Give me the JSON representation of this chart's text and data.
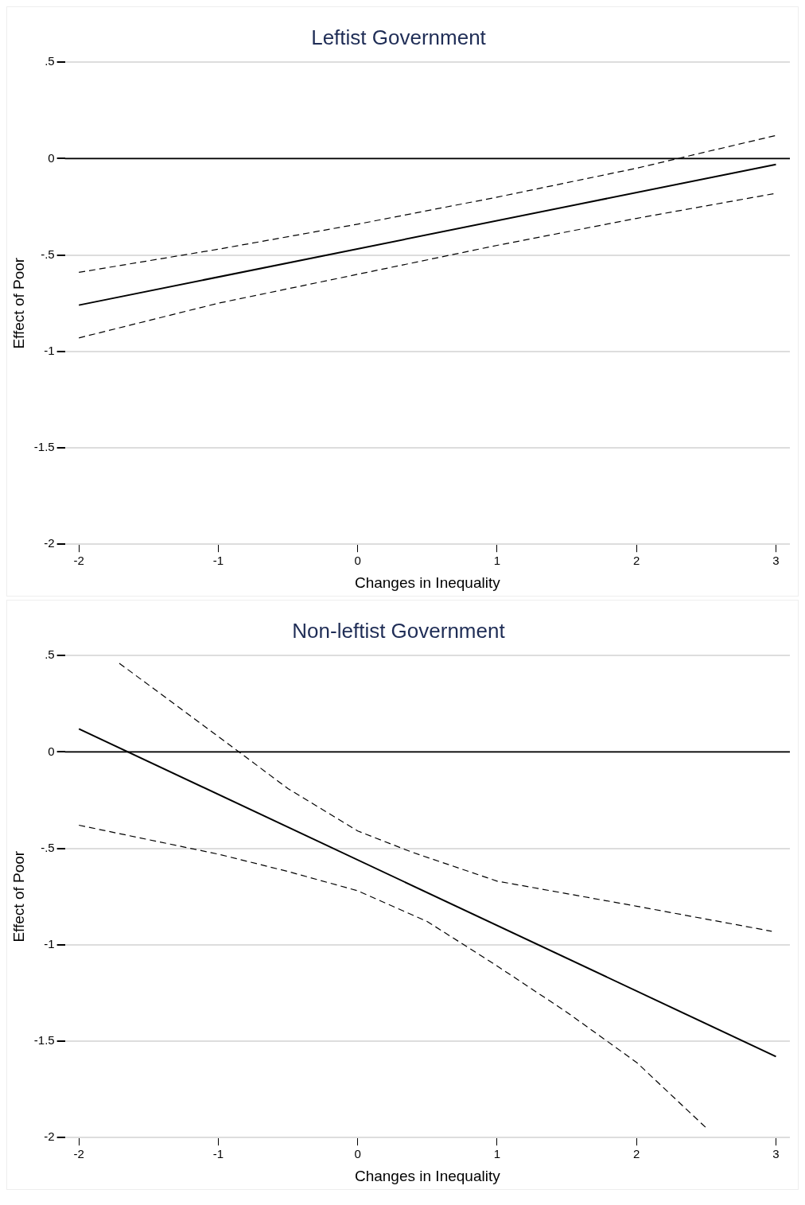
{
  "chart_data": [
    {
      "type": "line",
      "title": "Leftist Government",
      "xlabel": "Changes in Inequality",
      "ylabel": "Effect of Poor",
      "xlim": [
        -2.1,
        3.1
      ],
      "xticks": [
        -2,
        -1,
        0,
        1,
        2,
        3
      ],
      "ylim": [
        -2,
        0.5
      ],
      "yticks": [
        {
          "value": -2,
          "label": "-2"
        },
        {
          "value": -1.5,
          "label": "-1.5"
        },
        {
          "value": -1,
          "label": "-1"
        },
        {
          "value": -0.5,
          "label": "-.5"
        },
        {
          "value": 0,
          "label": "0"
        },
        {
          "value": 0.5,
          "label": ".5"
        }
      ],
      "grid": "y",
      "legend": false,
      "marker": "none",
      "ref_lines": [
        {
          "axis": "y",
          "value": 0,
          "color": "#000000",
          "line_style": "solid"
        }
      ],
      "series": [
        {
          "color": "#000000",
          "line_style": "dashed",
          "x": [
            -2,
            -1,
            0,
            1,
            2,
            3
          ],
          "values": [
            -0.59,
            -0.47,
            -0.34,
            -0.2,
            -0.05,
            0.12
          ]
        },
        {
          "color": "#000000",
          "line_style": "solid",
          "x": [
            -2,
            3
          ],
          "values": [
            -0.76,
            -0.03
          ]
        },
        {
          "color": "#000000",
          "line_style": "dashed",
          "x": [
            -2,
            -1,
            0,
            1,
            2,
            3
          ],
          "values": [
            -0.93,
            -0.75,
            -0.6,
            -0.45,
            -0.31,
            -0.18
          ]
        }
      ]
    },
    {
      "type": "line",
      "title": "Non-leftist Government",
      "xlabel": "Changes in Inequality",
      "ylabel": "Effect of Poor",
      "xlim": [
        -2.1,
        3.1
      ],
      "xticks": [
        -2,
        -1,
        0,
        1,
        2,
        3
      ],
      "ylim": [
        -2,
        0.5
      ],
      "yticks": [
        {
          "value": -2,
          "label": "-2"
        },
        {
          "value": -1.5,
          "label": "-1.5"
        },
        {
          "value": -1,
          "label": "-1"
        },
        {
          "value": -0.5,
          "label": "-.5"
        },
        {
          "value": 0,
          "label": "0"
        },
        {
          "value": 0.5,
          "label": ".5"
        }
      ],
      "grid": "y",
      "legend": false,
      "marker": "none",
      "ref_lines": [
        {
          "axis": "y",
          "value": 0,
          "color": "#000000",
          "line_style": "solid"
        }
      ],
      "series": [
        {
          "color": "#000000",
          "line_style": "dashed",
          "x": [
            -1.71,
            -1,
            -0.5,
            0,
            0.39,
            1,
            2,
            2.97
          ],
          "values": [
            0.46,
            0.08,
            -0.19,
            -0.41,
            -0.52,
            -0.67,
            -0.8,
            -0.93
          ]
        },
        {
          "color": "#000000",
          "line_style": "solid",
          "x": [
            -2,
            3
          ],
          "values": [
            0.12,
            -1.58
          ]
        },
        {
          "color": "#000000",
          "line_style": "dashed",
          "x": [
            -2,
            -1,
            -0.5,
            0,
            0.5,
            1,
            1.5,
            2,
            2.5
          ],
          "values": [
            -0.38,
            -0.53,
            -0.62,
            -0.72,
            -0.88,
            -1.11,
            -1.35,
            -1.61,
            -1.95
          ]
        }
      ]
    }
  ]
}
